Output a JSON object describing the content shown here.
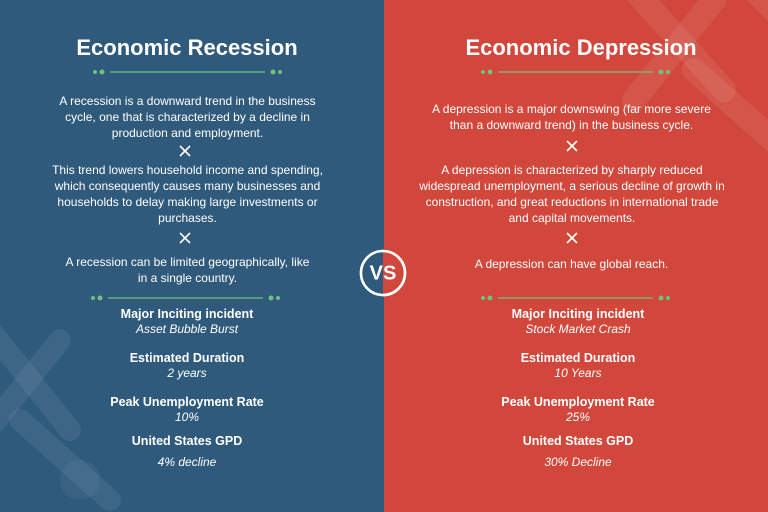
{
  "left": {
    "title": "Economic Recession",
    "paragraphs": [
      "A recession is a downward trend in the business cycle, one that is characterized by a decline in production and employment.",
      "This trend lowers household income and spending, which consequently causes many businesses and households to delay making large investments or purchases.",
      "A recession can be limited geographically, like in a single country."
    ],
    "stats": [
      {
        "label": "Major Inciting incident",
        "value": "Asset Bubble Burst"
      },
      {
        "label": "Estimated Duration",
        "value": "2 years"
      },
      {
        "label": "Peak Unemployment Rate",
        "value": "10%"
      },
      {
        "label": "United States GPD",
        "value": "4% decline"
      }
    ]
  },
  "right": {
    "title": "Economic Depression",
    "paragraphs": [
      "A depression is a major downswing (far more severe than a downward trend) in the business cycle.",
      "A depression is characterized by sharply reduced widespread unemployment, a serious decline of growth in construction, and great reductions in international trade and capital movements.",
      "A depression can have global reach."
    ],
    "stats": [
      {
        "label": "Major Inciting incident",
        "value": "Stock Market Crash"
      },
      {
        "label": "Estimated Duration",
        "value": "10 Years"
      },
      {
        "label": "Peak Unemployment Rate",
        "value": "25%"
      },
      {
        "label": "United States GPD",
        "value": "30% Decline"
      }
    ]
  },
  "badge": "VS"
}
